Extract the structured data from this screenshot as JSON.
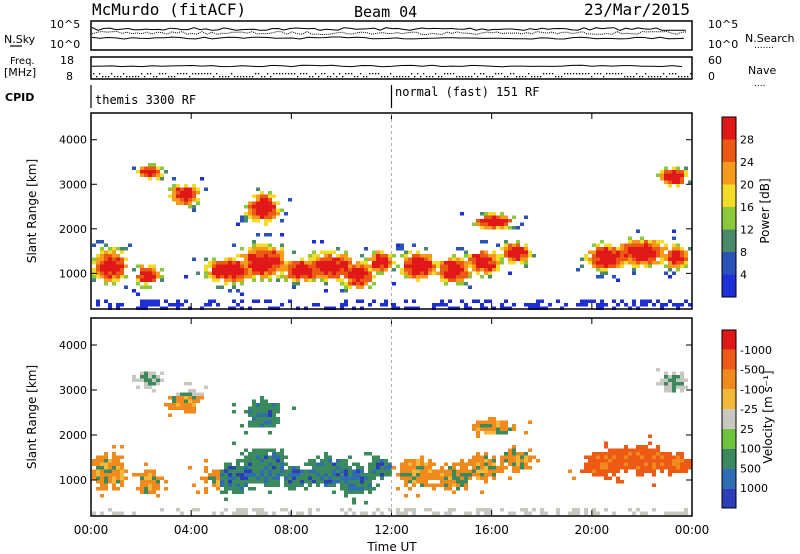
{
  "header": {
    "station": "McMurdo (fitACF)",
    "beam": "Beam 04",
    "date": "23/Mar/2015"
  },
  "top_panels": {
    "nsky": {
      "label": "N.Sky",
      "ticks": [
        "10^5",
        "10^0"
      ],
      "right_label": "N.Search",
      "right_ticks": [
        "10^5",
        "10^0"
      ],
      "right_legend": "......."
    },
    "freq": {
      "label_line1": "Freq.",
      "label_line2": "[MHz]",
      "ticks": [
        "18",
        "8"
      ],
      "right_label": "Nave",
      "right_ticks": [
        "60",
        "0"
      ],
      "right_legend": "...."
    },
    "cpid": {
      "label": "CPID",
      "segments": [
        {
          "text": "themis 3300 RF",
          "start_hour": 0
        },
        {
          "text": "normal (fast) 151 RF",
          "start_hour": 12
        }
      ]
    }
  },
  "chart_data": [
    {
      "type": "heatmap",
      "name": "power",
      "ylabel": "Slant Range [km]",
      "xlim": [
        0,
        24
      ],
      "ylim": [
        200,
        4600
      ],
      "yticks": [
        "1000",
        "2000",
        "3000",
        "4000"
      ],
      "colorbar": {
        "label": "Power [dB]",
        "ticks": [
          "4",
          "8",
          "12",
          "16",
          "20",
          "24",
          "28"
        ],
        "colors": [
          "#1f2fd8",
          "#2a52b8",
          "#4a8a6a",
          "#8cc83c",
          "#f2dc2a",
          "#f59a1a",
          "#ea5a14",
          "#e01818"
        ]
      }
    },
    {
      "type": "heatmap",
      "name": "velocity",
      "ylabel": "Slant Range [km]",
      "xlabel": "Time UT",
      "xlim": [
        0,
        24
      ],
      "ylim": [
        200,
        4600
      ],
      "yticks": [
        "1000",
        "2000",
        "3000",
        "4000"
      ],
      "xticks": [
        "00:00",
        "04:00",
        "08:00",
        "12:00",
        "16:00",
        "20:00",
        "00:00"
      ],
      "colorbar": {
        "label": "Velocity [m s⁻¹]",
        "ticks": [
          "1000",
          "500",
          "100",
          "25",
          "-25",
          "-100",
          "-500",
          "-1000"
        ],
        "colors": [
          "#2b3fb8",
          "#2e6db2",
          "#3a8a5e",
          "#6ec23e",
          "#c8c8c0",
          "#f2b83a",
          "#f08a1c",
          "#ec5a16",
          "#e01818"
        ]
      }
    }
  ]
}
